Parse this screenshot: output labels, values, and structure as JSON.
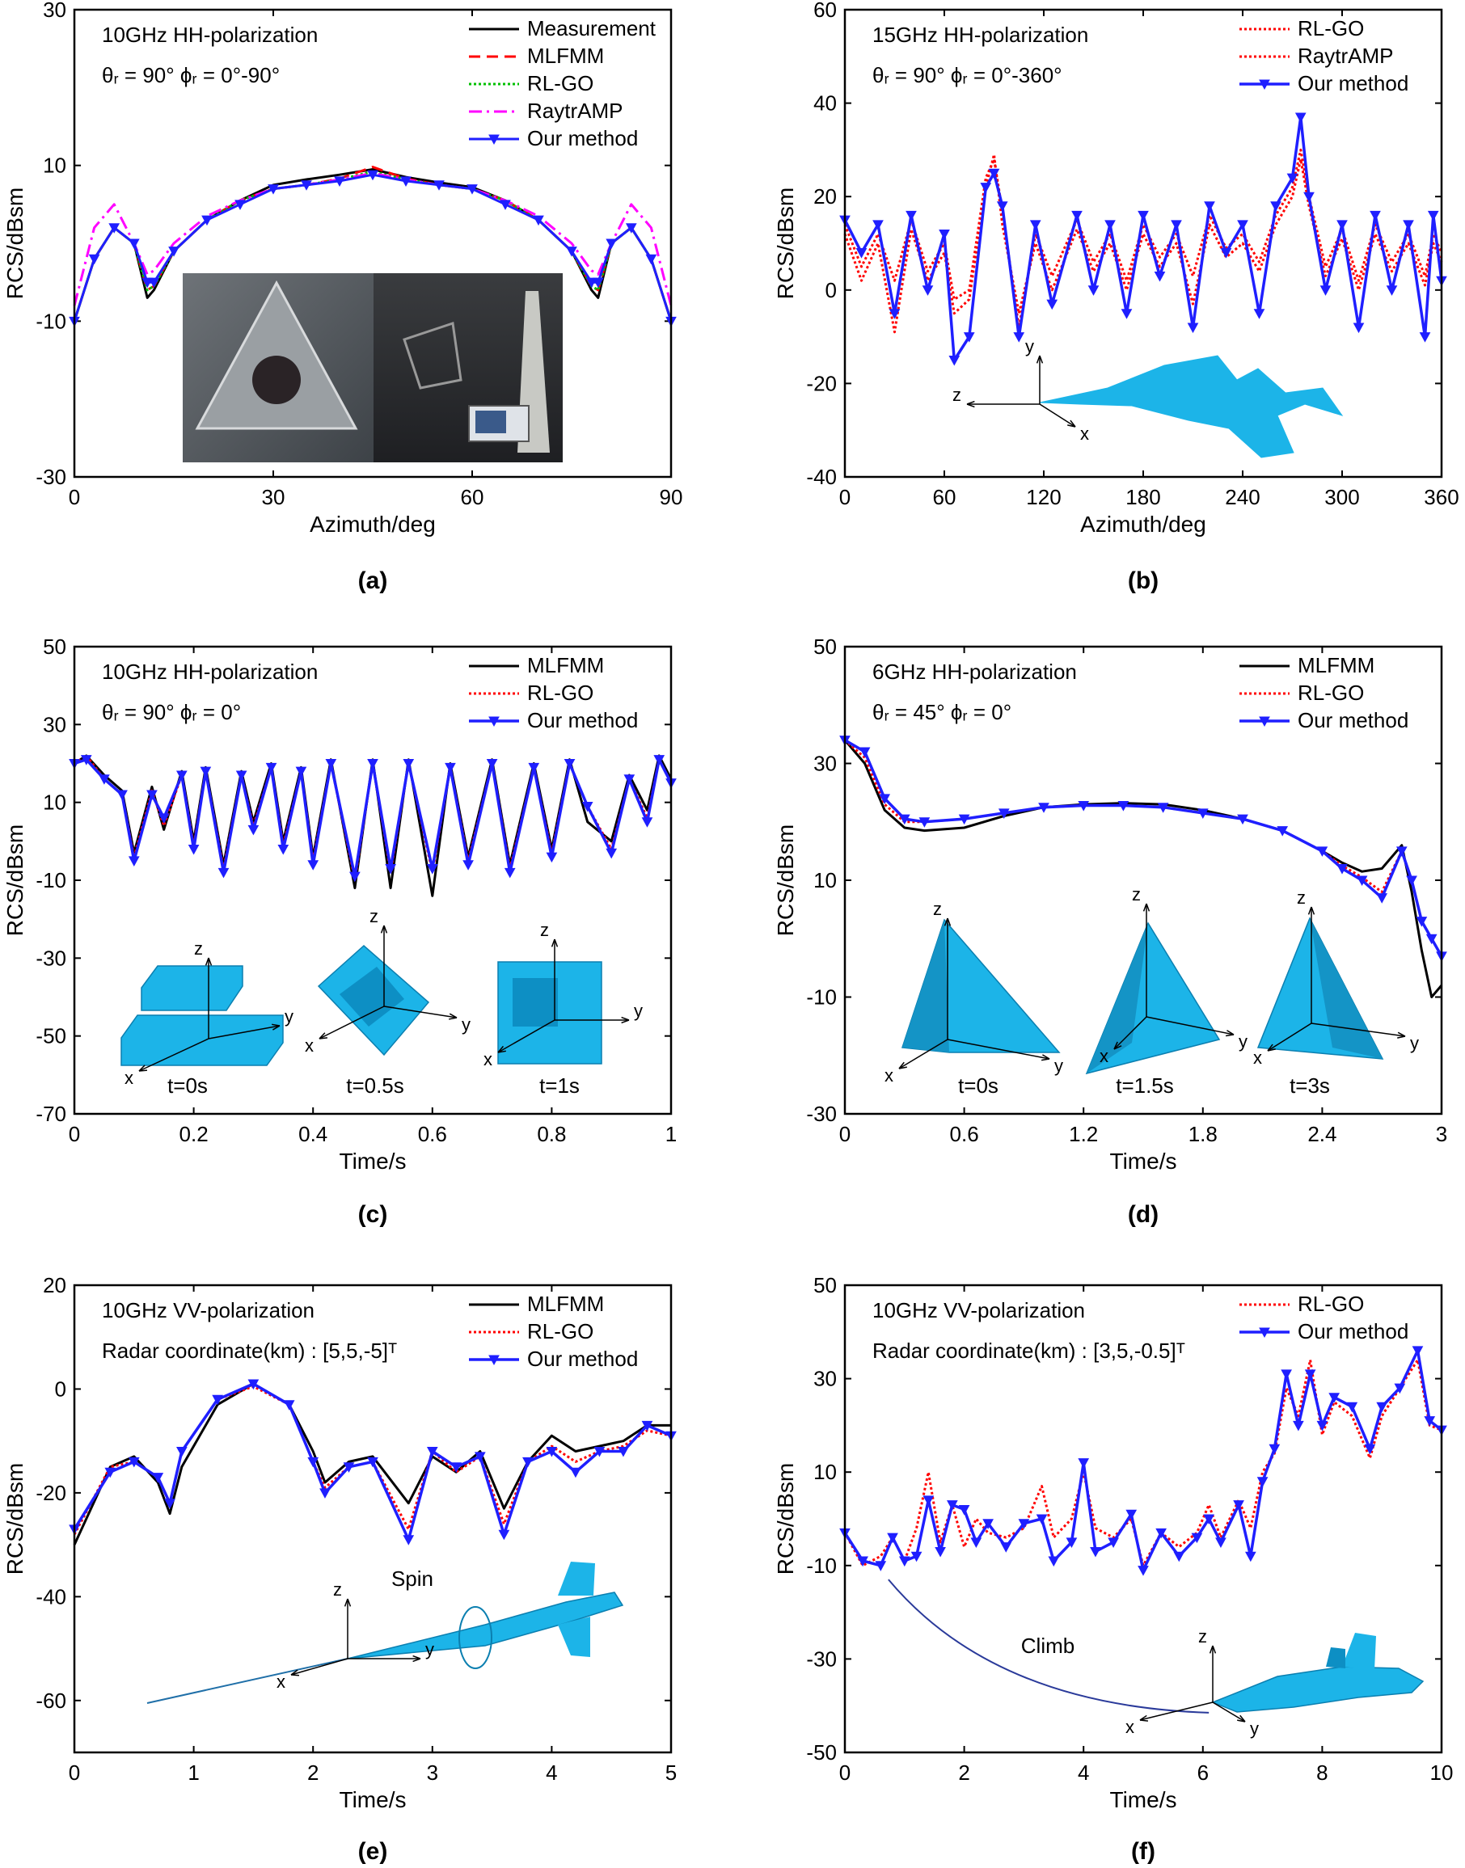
{
  "colors": {
    "measurement": "#000000",
    "mlfmm": "#000000",
    "mlfmm_a": "#ff0000",
    "rlgo": "#ff0000",
    "rlgo_a": "#00c000",
    "raytramp": "#ff00ff",
    "ours": "#1f1fff",
    "model": "#1cb4e8",
    "model_dark": "#0b7fb0"
  },
  "chart_data": [
    {
      "id": "a",
      "type": "line",
      "label": "(a)",
      "xlabel": "Azimuth/deg",
      "ylabel": "RCS/dBsm",
      "xlim": [
        0,
        90
      ],
      "ylim": [
        -30,
        30
      ],
      "xticks": [
        0,
        30,
        60,
        90
      ],
      "yticks": [
        -30,
        -10,
        10,
        30
      ],
      "annotations": [
        "10GHz HH-polarization",
        "θᵣ = 90° ϕᵣ = 0°-90°"
      ],
      "inset": "photo of trihedral target in anechoic chamber with vector network analyzer",
      "legend": [
        "Measurement",
        "MLFMM",
        "RL-GO",
        "RaytrAMP",
        "Our method"
      ],
      "x": [
        0,
        3,
        6,
        9,
        11,
        12,
        15,
        20,
        25,
        30,
        35,
        40,
        45,
        50,
        55,
        60,
        65,
        70,
        75,
        78,
        79,
        81,
        84,
        87,
        90
      ],
      "series": [
        {
          "name": "Measurement",
          "values": [
            -10,
            -2,
            2,
            0,
            -7,
            -6,
            -1,
            3,
            5.5,
            7.5,
            8.2,
            8.8,
            9.5,
            8.5,
            7.8,
            7.2,
            5.5,
            3,
            -1,
            -6,
            -7,
            0,
            2,
            -2,
            -10
          ]
        },
        {
          "name": "MLFMM",
          "values": [
            -10,
            -2,
            2,
            0,
            -6,
            -5.5,
            -1,
            3,
            5.5,
            7,
            7.5,
            8.3,
            9.8,
            8.3,
            7.5,
            7,
            5.5,
            3,
            -1,
            -5.5,
            -6,
            0,
            2,
            -2,
            -10
          ]
        },
        {
          "name": "RL-GO",
          "values": [
            -10,
            -2,
            2,
            0,
            -6,
            -5.5,
            -1,
            3,
            5.5,
            7,
            7.5,
            8.2,
            9.2,
            8.2,
            7.5,
            7,
            5.5,
            3,
            -1,
            -5.5,
            -6,
            0,
            2,
            -2,
            -10
          ]
        },
        {
          "name": "RaytrAMP",
          "values": [
            -8,
            2,
            5,
            0,
            -4,
            -3.5,
            0,
            3.5,
            5.5,
            7,
            7.5,
            8.2,
            9,
            8.2,
            7.5,
            7,
            5.5,
            3.5,
            0,
            -3.5,
            -4,
            0,
            5,
            2,
            -8
          ]
        },
        {
          "name": "Our method",
          "values": [
            -10,
            -2,
            2,
            0,
            -5,
            -5,
            -1,
            3,
            5,
            7,
            7.5,
            8,
            8.8,
            8,
            7.5,
            7,
            5,
            3,
            -1,
            -5,
            -5,
            0,
            2,
            -2,
            -10
          ]
        }
      ]
    },
    {
      "id": "b",
      "type": "line",
      "label": "(b)",
      "xlabel": "Azimuth/deg",
      "ylabel": "RCS/dBsm",
      "xlim": [
        0,
        360
      ],
      "ylim": [
        -40,
        60
      ],
      "xticks": [
        0,
        60,
        120,
        180,
        240,
        300,
        360
      ],
      "yticks": [
        -40,
        -20,
        0,
        20,
        40,
        60
      ],
      "annotations": [
        "15GHz HH-polarization",
        "θᵣ = 90° ϕᵣ = 0°-360°"
      ],
      "inset_axes": [
        "y",
        "z",
        "x"
      ],
      "legend": [
        "RL-GO",
        "RaytrAMP",
        "Our method"
      ],
      "x": [
        0,
        10,
        20,
        30,
        40,
        50,
        60,
        66,
        75,
        85,
        90,
        95,
        105,
        115,
        125,
        140,
        150,
        160,
        170,
        180,
        190,
        200,
        210,
        220,
        230,
        240,
        250,
        260,
        270,
        275,
        280,
        290,
        300,
        310,
        320,
        330,
        340,
        350,
        355,
        360
      ],
      "series": [
        {
          "name": "RL-GO",
          "values": [
            14,
            5,
            12,
            2,
            15,
            4,
            10,
            -2,
            0,
            24,
            28,
            17,
            -8,
            12,
            3,
            15,
            6,
            12,
            2,
            14,
            7,
            12,
            3,
            16,
            9,
            12,
            6,
            16,
            22,
            30,
            20,
            5,
            13,
            2,
            14,
            6,
            12,
            3,
            12,
            8
          ]
        },
        {
          "name": "RaytrAMP",
          "values": [
            12,
            2,
            10,
            -9,
            13,
            2,
            8,
            -5,
            -2,
            22,
            29,
            14,
            -5,
            10,
            0,
            13,
            4,
            10,
            0,
            12,
            5,
            10,
            -3,
            14,
            7,
            10,
            4,
            14,
            20,
            28,
            18,
            3,
            11,
            0,
            12,
            4,
            10,
            1,
            10,
            6
          ]
        },
        {
          "name": "Our method",
          "values": [
            15,
            8,
            14,
            -5,
            16,
            0,
            12,
            -15,
            -10,
            22,
            25,
            18,
            -10,
            14,
            -3,
            16,
            0,
            14,
            -5,
            16,
            3,
            14,
            -8,
            18,
            8,
            14,
            -5,
            18,
            24,
            37,
            20,
            0,
            14,
            -8,
            16,
            0,
            14,
            -10,
            16,
            2
          ]
        }
      ]
    },
    {
      "id": "c",
      "type": "line",
      "label": "(c)",
      "xlabel": "Time/s",
      "ylabel": "RCS/dBsm",
      "xlim": [
        0,
        1
      ],
      "ylim": [
        -70,
        50
      ],
      "xticks": [
        0,
        0.2,
        0.4,
        0.6,
        0.8,
        1
      ],
      "xtick_labels": [
        "0",
        "0.2",
        "0.4",
        "0.6",
        "0.8",
        "1"
      ],
      "yticks": [
        -70,
        -50,
        -30,
        -10,
        10,
        30,
        50
      ],
      "annotations": [
        "10GHz HH-polarization",
        "θᵣ = 90° ϕᵣ = 0°"
      ],
      "inset_labels": [
        "t=0s",
        "t=0.5s",
        "t=1s"
      ],
      "inset_axes": [
        "z",
        "y",
        "x"
      ],
      "legend": [
        "MLFMM",
        "RL-GO",
        "Our method"
      ],
      "x": [
        0,
        0.02,
        0.05,
        0.08,
        0.1,
        0.13,
        0.15,
        0.18,
        0.2,
        0.22,
        0.25,
        0.28,
        0.3,
        0.33,
        0.35,
        0.38,
        0.4,
        0.43,
        0.47,
        0.5,
        0.53,
        0.56,
        0.6,
        0.63,
        0.66,
        0.7,
        0.73,
        0.77,
        0.8,
        0.83,
        0.86,
        0.9,
        0.93,
        0.96,
        0.98,
        1
      ],
      "series": [
        {
          "name": "MLFMM",
          "values": [
            20,
            22,
            17,
            13,
            -3,
            14,
            3,
            18,
            0,
            19,
            -6,
            18,
            5,
            20,
            0,
            19,
            -4,
            21,
            -12,
            21,
            -12,
            21,
            -14,
            20,
            -4,
            21,
            -6,
            20,
            -2,
            21,
            5,
            0,
            17,
            8,
            22,
            16
          ]
        },
        {
          "name": "RL-GO",
          "values": [
            20,
            22,
            16,
            12,
            -4,
            13,
            4,
            17,
            -1,
            18,
            -7,
            17,
            4,
            19,
            -1,
            18,
            -5,
            20,
            -10,
            20,
            -8,
            20,
            -8,
            19,
            -5,
            20,
            -7,
            19,
            -3,
            20,
            9,
            -2,
            16,
            6,
            21,
            15
          ]
        },
        {
          "name": "Our method",
          "values": [
            20,
            21,
            16,
            12,
            -5,
            12,
            6,
            17,
            -2,
            18,
            -8,
            17,
            3,
            19,
            -2,
            18,
            -6,
            20,
            -9,
            20,
            -7,
            20,
            -7,
            19,
            -6,
            20,
            -8,
            19,
            -4,
            20,
            9,
            -3,
            16,
            5,
            21,
            15
          ]
        }
      ]
    },
    {
      "id": "d",
      "type": "line",
      "label": "(d)",
      "xlabel": "Time/s",
      "ylabel": "RCS/dBsm",
      "xlim": [
        0,
        3
      ],
      "ylim": [
        -30,
        50
      ],
      "xticks": [
        0,
        0.6,
        1.2,
        1.8,
        2.4,
        3
      ],
      "xtick_labels": [
        "0",
        "0.6",
        "1.2",
        "1.8",
        "2.4",
        "3"
      ],
      "yticks": [
        -30,
        -10,
        10,
        30,
        50
      ],
      "annotations": [
        "6GHz HH-polarization",
        "θᵣ = 45° ϕᵣ = 0°"
      ],
      "inset_labels": [
        "t=0s",
        "t=1.5s",
        "t=3s"
      ],
      "inset_axes": [
        "z",
        "y",
        "x"
      ],
      "legend": [
        "MLFMM",
        "RL-GO",
        "Our method"
      ],
      "x": [
        0,
        0.1,
        0.2,
        0.3,
        0.4,
        0.6,
        0.8,
        1.0,
        1.2,
        1.4,
        1.6,
        1.8,
        2.0,
        2.2,
        2.4,
        2.5,
        2.6,
        2.7,
        2.8,
        2.85,
        2.9,
        2.95,
        3
      ],
      "series": [
        {
          "name": "MLFMM",
          "values": [
            34,
            30,
            22,
            19,
            18.5,
            19,
            21,
            22.5,
            23,
            23.2,
            23,
            22,
            20.5,
            18.5,
            15,
            13,
            11.5,
            12,
            16,
            8,
            -2,
            -10,
            -8
          ]
        },
        {
          "name": "RL-GO",
          "values": [
            34,
            31,
            23,
            20,
            20,
            20.5,
            21.5,
            22.5,
            22.8,
            22.8,
            22.5,
            21.5,
            20.5,
            18.5,
            15,
            12.5,
            10.5,
            8,
            15,
            10,
            3,
            0,
            -3
          ]
        },
        {
          "name": "Our method",
          "values": [
            34,
            32,
            24,
            20.5,
            20,
            20.5,
            21.5,
            22.5,
            22.8,
            22.8,
            22.5,
            21.5,
            20.5,
            18.5,
            15,
            12,
            10,
            7,
            15,
            10,
            3,
            0,
            -3
          ]
        }
      ]
    },
    {
      "id": "e",
      "type": "line",
      "label": "(e)",
      "xlabel": "Time/s",
      "ylabel": "RCS/dBsm",
      "xlim": [
        0,
        5
      ],
      "ylim": [
        -70,
        20
      ],
      "xticks": [
        0,
        1,
        2,
        3,
        4,
        5
      ],
      "yticks": [
        -60,
        -40,
        -20,
        0,
        20
      ],
      "annotations": [
        "10GHz VV-polarization",
        "Radar coordinate(km) : [5,5,-5]ᵀ"
      ],
      "inset_labels": [
        "Spin"
      ],
      "inset_axes": [
        "z",
        "y",
        "x"
      ],
      "legend": [
        "MLFMM",
        "RL-GO",
        "Our method"
      ],
      "x": [
        0,
        0.3,
        0.5,
        0.7,
        0.8,
        0.9,
        1.2,
        1.5,
        1.8,
        2.0,
        2.1,
        2.3,
        2.5,
        2.8,
        3.0,
        3.2,
        3.4,
        3.6,
        3.8,
        4.0,
        4.2,
        4.4,
        4.6,
        4.8,
        5
      ],
      "series": [
        {
          "name": "MLFMM",
          "values": [
            -30,
            -15,
            -13,
            -18,
            -24,
            -15,
            -3,
            1,
            -3,
            -12,
            -18,
            -14,
            -13,
            -22,
            -13,
            -16,
            -12,
            -23,
            -14,
            -9,
            -12,
            -11,
            -10,
            -7,
            -7
          ]
        },
        {
          "name": "RL-GO",
          "values": [
            -28,
            -15,
            -14,
            -17,
            -22,
            -12,
            -2,
            0.5,
            -3,
            -14,
            -19,
            -15,
            -14,
            -27,
            -12,
            -16,
            -13,
            -26,
            -14,
            -11,
            -14,
            -12,
            -11,
            -8,
            -9
          ]
        },
        {
          "name": "Our method",
          "values": [
            -27,
            -16,
            -14,
            -17,
            -22,
            -12,
            -2,
            1,
            -3,
            -14,
            -20,
            -15,
            -14,
            -29,
            -12,
            -15,
            -13,
            -28,
            -14,
            -12,
            -16,
            -12,
            -12,
            -7,
            -9
          ]
        }
      ]
    },
    {
      "id": "f",
      "type": "line",
      "label": "(f)",
      "xlabel": "Time/s",
      "ylabel": "RCS/dBsm",
      "xlim": [
        0,
        10
      ],
      "ylim": [
        -50,
        50
      ],
      "xticks": [
        0,
        2,
        4,
        6,
        8,
        10
      ],
      "yticks": [
        -50,
        -30,
        -10,
        10,
        30,
        50
      ],
      "annotations": [
        "10GHz VV-polarization",
        "Radar coordinate(km) : [3,5,-0.5]ᵀ"
      ],
      "inset_labels": [
        "Climb"
      ],
      "inset_axes": [
        "z",
        "y",
        "x"
      ],
      "legend": [
        "RL-GO",
        "Our method"
      ],
      "x": [
        0,
        0.3,
        0.6,
        0.8,
        1.0,
        1.2,
        1.4,
        1.6,
        1.8,
        2.0,
        2.2,
        2.4,
        2.7,
        3.0,
        3.3,
        3.5,
        3.8,
        4.0,
        4.2,
        4.5,
        4.8,
        5.0,
        5.3,
        5.6,
        5.9,
        6.1,
        6.3,
        6.6,
        6.8,
        7.0,
        7.2,
        7.4,
        7.6,
        7.8,
        8.0,
        8.2,
        8.5,
        8.8,
        9.0,
        9.3,
        9.6,
        9.8,
        10
      ],
      "series": [
        {
          "name": "RL-GO",
          "values": [
            -3,
            -10,
            -8,
            -4,
            -9,
            -2,
            10,
            -5,
            3,
            -6,
            0,
            -3,
            -4,
            -2,
            7,
            -4,
            0,
            10,
            -2,
            -4,
            0,
            -10,
            -3,
            -6,
            -3,
            3,
            -4,
            4,
            -2,
            10,
            14,
            28,
            22,
            34,
            18,
            25,
            22,
            13,
            22,
            28,
            34,
            20,
            19
          ]
        },
        {
          "name": "Our method",
          "values": [
            -3,
            -9,
            -10,
            -4,
            -9,
            -8,
            4,
            -7,
            3,
            2,
            -5,
            -1,
            -6,
            -1,
            0,
            -9,
            -5,
            12,
            -7,
            -5,
            1,
            -11,
            -3,
            -8,
            -4,
            0,
            -5,
            3,
            -8,
            8,
            15,
            31,
            20,
            31,
            20,
            26,
            24,
            15,
            24,
            28,
            36,
            21,
            19
          ]
        }
      ]
    }
  ]
}
